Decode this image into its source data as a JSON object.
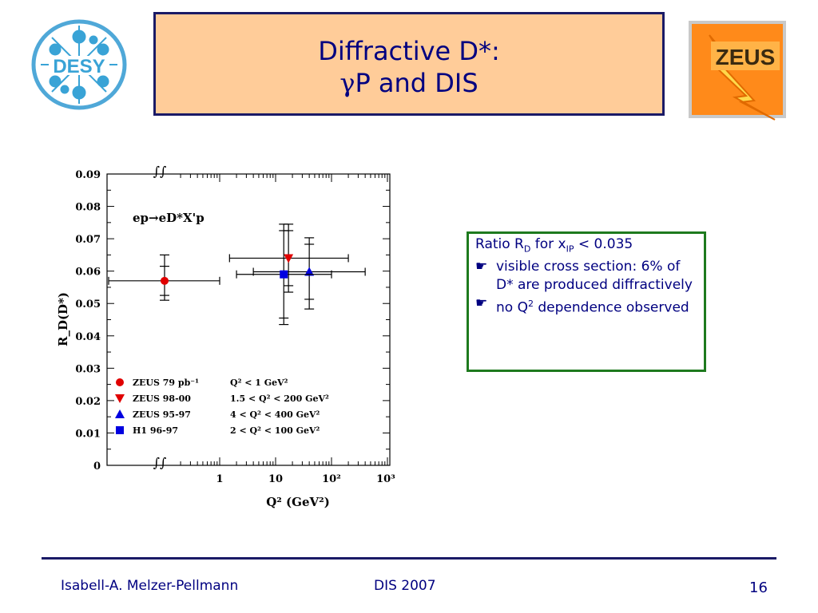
{
  "slide": {
    "title_line1": "Diffractive D*:",
    "title_gamma": "γ",
    "title_line2": "P and DIS"
  },
  "logos": {
    "desy_text": "DESY",
    "zeus_text": "ZEUS"
  },
  "info_box": {
    "line1_pre": "Ratio R",
    "line1_sub": "D",
    "line1_mid": " for x",
    "line1_sub2": "IP",
    "line1_post": " < 0.035",
    "bullet_glyph": "☛",
    "item1": "visible cross section: 6% of D* are produced diffractively",
    "item2_pre": "no Q",
    "item2_sup": "2",
    "item2_post": " dependence observed"
  },
  "footer": {
    "author": "Isabell-A. Melzer-Pellmann",
    "conference": "DIS 2007",
    "page": "16"
  },
  "chart_data": {
    "type": "scatter",
    "title": "",
    "xlabel": "Q² (GeV²)",
    "ylabel": "R_D(D*)",
    "x_scale": "log",
    "x_ticks": [
      "1",
      "10",
      "10²",
      "10³"
    ],
    "ylim": [
      0,
      0.09
    ],
    "y_ticks": [
      "0",
      "0.01",
      "0.02",
      "0.03",
      "0.04",
      "0.05",
      "0.06",
      "0.07",
      "0.08",
      "0.09"
    ],
    "annotation": "ep→eD*X'p",
    "axis_break_glyph": "∫∫",
    "grid": false,
    "legend_position": "bottom-left",
    "series": [
      {
        "name": "ZEUS 79 pb⁻¹",
        "range": "Q² <   1 GeV²",
        "marker": "circle",
        "color": "#e00000",
        "points": [
          {
            "y": 0.057,
            "x_lo": "below-break",
            "x_hi": 1,
            "stat": [
              0.0045,
              0.0045
            ],
            "sys": [
              0.006,
              0.008
            ]
          }
        ]
      },
      {
        "name": "ZEUS 98-00",
        "range": "1.5 < Q² < 200 GeV²",
        "marker": "triangle-down",
        "color": "#e00000",
        "points": [
          {
            "x": 17,
            "x_lo": 1.5,
            "x_hi": 200,
            "y": 0.064,
            "stat": [
              0.0085,
              0.0085
            ],
            "sys": [
              0.0105,
              0.0105
            ]
          }
        ]
      },
      {
        "name": "ZEUS 95-97",
        "range": "4  < Q² < 400 GeV²",
        "marker": "triangle-up",
        "color": "#0000e0",
        "points": [
          {
            "x": 40,
            "x_lo": 4,
            "x_hi": 400,
            "y": 0.0598,
            "stat": [
              0.0085,
              0.0085
            ],
            "sys": [
              0.0115,
              0.0105
            ]
          }
        ]
      },
      {
        "name": "H1    96-97",
        "range": "2  < Q² < 100 GeV²",
        "marker": "square",
        "color": "#0000e0",
        "points": [
          {
            "x": 14,
            "x_lo": 2,
            "x_hi": 100,
            "y": 0.059,
            "stat": [
              0.0135,
              0.0135
            ],
            "sys": [
              0.0155,
              0.0155
            ]
          }
        ]
      }
    ]
  }
}
